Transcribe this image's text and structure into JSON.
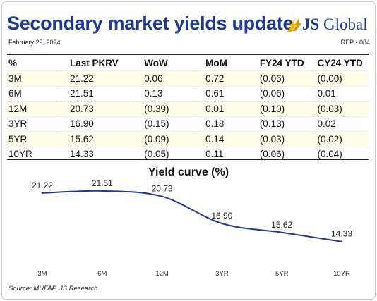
{
  "header": {
    "title": "Secondary market yields update",
    "date": "February 29, 2024",
    "ref": "REP - 084",
    "logo_text_bold": "JS",
    "logo_text": " Global"
  },
  "table": {
    "columns": [
      "%",
      "Last PKRV",
      "WoW",
      "MoM",
      "FY24 YTD",
      "CY24 YTD"
    ],
    "rows": [
      [
        "3M",
        "21.22",
        "0.06",
        "0.72",
        "(0.06)",
        "(0.00)"
      ],
      [
        "6M",
        "21.51",
        "0.13",
        "0.61",
        "(0.06)",
        "0.01"
      ],
      [
        "12M",
        "20.73",
        "(0.39)",
        "0.01",
        "(0.10)",
        "(0.03)"
      ],
      [
        "3YR",
        "16.90",
        "(0.15)",
        "0.18",
        "(0.13)",
        "0.02"
      ],
      [
        "5YR",
        "15.62",
        "(0.09)",
        "0.14",
        "(0.03)",
        "(0.02)"
      ],
      [
        "10YR",
        "14.33",
        "(0.05)",
        "0.11",
        "(0.06)",
        "(0.04)"
      ]
    ]
  },
  "chart_data": {
    "type": "line",
    "title": "Yield curve (%)",
    "categories": [
      "3M",
      "6M",
      "12M",
      "3YR",
      "5YR",
      "10YR"
    ],
    "values": [
      21.22,
      21.51,
      20.73,
      16.9,
      15.62,
      14.33
    ],
    "data_labels": [
      "21.22",
      "21.51",
      "20.73",
      "16.90",
      "15.62",
      "14.33"
    ],
    "ylim": [
      12.5,
      22.5
    ],
    "grid": false,
    "line_color": "#1f3a93"
  },
  "footer": {
    "source": "Source: MUFAP, JS Research"
  },
  "colors": {
    "brand": "#1f3a93",
    "accent": "#f2b700"
  }
}
